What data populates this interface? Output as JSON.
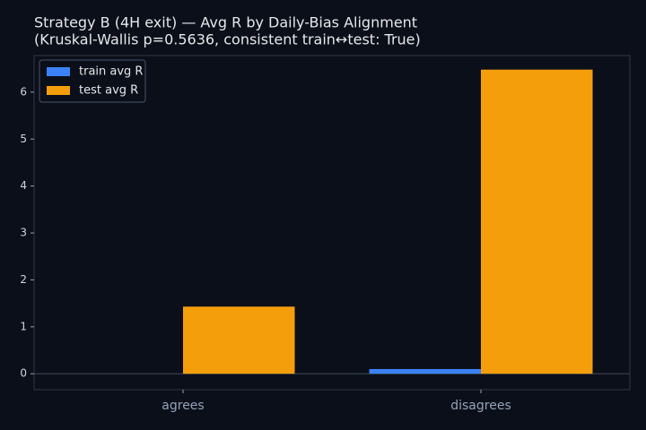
{
  "chart_data": {
    "type": "bar",
    "title": "Strategy B (4H exit) — Avg R by Daily-Bias Alignment",
    "subtitle": "(Kruskal-Wallis p=0.5636, consistent train↔test: True)",
    "categories": [
      "agrees",
      "disagrees"
    ],
    "series": [
      {
        "name": "train avg R",
        "color": "#3b82f6",
        "values": [
          0,
          0.1
        ]
      },
      {
        "name": "test avg R",
        "color": "#f59e0b",
        "values": [
          1.43,
          6.48
        ]
      }
    ],
    "ylim": [
      -0.34,
      6.78
    ],
    "yticks": [
      0,
      1,
      2,
      3,
      4,
      5,
      6
    ],
    "legend": "upper left"
  }
}
